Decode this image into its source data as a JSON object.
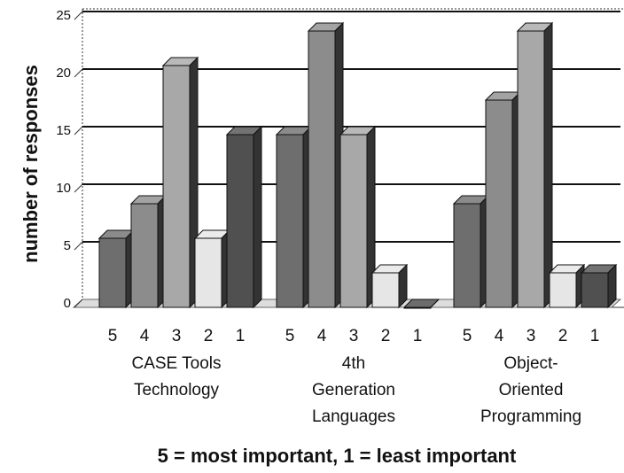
{
  "chart_data": {
    "type": "bar3d",
    "categories": [
      [
        "CASE Tools",
        "Technology"
      ],
      [
        "4th",
        "Generation",
        "Languages"
      ],
      [
        "Object-",
        "Oriented",
        "Programming"
      ]
    ],
    "series": [
      {
        "name": "5",
        "color": "#6e6e6e",
        "values": [
          6,
          15,
          9
        ]
      },
      {
        "name": "4",
        "color": "#8c8c8c",
        "values": [
          9,
          24,
          18
        ]
      },
      {
        "name": "3",
        "color": "#a8a8a8",
        "values": [
          21,
          15,
          24
        ]
      },
      {
        "name": "2",
        "color": "#e6e6e6",
        "values": [
          6,
          3,
          3
        ]
      },
      {
        "name": "1",
        "color": "#505050",
        "values": [
          15,
          0,
          3
        ]
      }
    ],
    "ylabel": "number of responses",
    "xlabel": "5 = most important, 1 = least important",
    "ylim": [
      0,
      25
    ],
    "yticks": [
      0,
      5,
      10,
      15,
      20,
      25
    ],
    "grid": true
  }
}
